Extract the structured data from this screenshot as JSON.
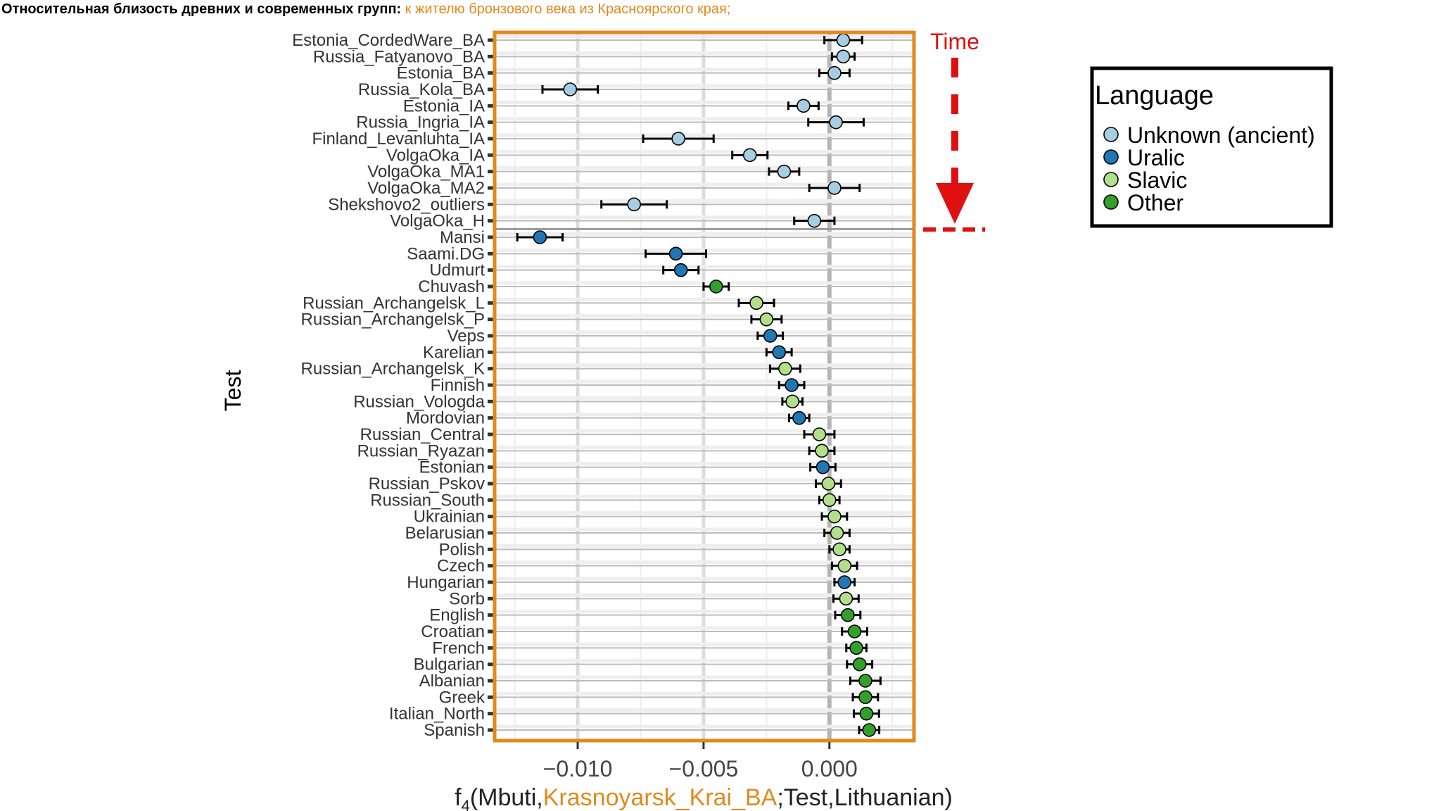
{
  "title": {
    "main": "Относительная близость древних и современных групп:",
    "highlight": "к жителю бронзового века из Красноярского края;"
  },
  "annotation": {
    "time_label": "Time"
  },
  "colors": {
    "frame": "#e08a1e",
    "time_arrow": "#e01010",
    "Unknown (ancient)": "#a6cee3",
    "Uralic": "#1f78b4",
    "Slavic": "#b2df8a",
    "Other": "#33a02c"
  },
  "chart_data": {
    "type": "scatter",
    "title": "",
    "xlabel_parts": [
      "f",
      "4",
      "(Mbuti,",
      "Krasnoyarsk_Krai_BA",
      ";Test,Lithuanian)"
    ],
    "ylabel": "Test",
    "xlim": [
      -0.0133,
      0.00336
    ],
    "xticks": [
      -0.01,
      -0.005,
      0.0
    ],
    "xtick_labels": [
      "−0.010",
      "−0.005",
      "0.000"
    ],
    "grid": true,
    "legend": {
      "title": "Language",
      "placement": "right",
      "entries": [
        "Unknown (ancient)",
        "Uralic",
        "Slavic",
        "Other"
      ]
    },
    "separator_after": "VolgaOka_H",
    "points": [
      {
        "label": "Estonia_CordedWare_BA",
        "value": 0.00055,
        "err": 0.00075,
        "group": "Unknown (ancient)"
      },
      {
        "label": "Russia_Fatyanovo_BA",
        "value": 0.00055,
        "err": 0.00045,
        "group": "Unknown (ancient)"
      },
      {
        "label": "Estonia_BA",
        "value": 0.0002,
        "err": 0.0006,
        "group": "Unknown (ancient)"
      },
      {
        "label": "Russia_Kola_BA",
        "value": -0.0103,
        "err": 0.0011,
        "group": "Unknown (ancient)"
      },
      {
        "label": "Estonia_IA",
        "value": -0.00103,
        "err": 0.0006,
        "group": "Unknown (ancient)"
      },
      {
        "label": "Russia_Ingria_IA",
        "value": 0.00026,
        "err": 0.0011,
        "group": "Unknown (ancient)"
      },
      {
        "label": "Finland_Levanluhta_IA",
        "value": -0.006,
        "err": 0.0014,
        "group": "Unknown (ancient)"
      },
      {
        "label": "VolgaOka_IA",
        "value": -0.00316,
        "err": 0.0007,
        "group": "Unknown (ancient)"
      },
      {
        "label": "VolgaOka_MA1",
        "value": -0.0018,
        "err": 0.0006,
        "group": "Unknown (ancient)"
      },
      {
        "label": "VolgaOka_MA2",
        "value": 0.0002,
        "err": 0.001,
        "group": "Unknown (ancient)"
      },
      {
        "label": "Shekshovo2_outliers",
        "value": -0.00776,
        "err": 0.0013,
        "group": "Unknown (ancient)"
      },
      {
        "label": "VolgaOka_H",
        "value": -0.0006,
        "err": 0.0008,
        "group": "Unknown (ancient)"
      },
      {
        "label": "Mansi",
        "value": -0.0115,
        "err": 0.0009,
        "group": "Uralic"
      },
      {
        "label": "Saami.DG",
        "value": -0.0061,
        "err": 0.0012,
        "group": "Uralic"
      },
      {
        "label": "Udmurt",
        "value": -0.0059,
        "err": 0.0007,
        "group": "Uralic"
      },
      {
        "label": "Chuvash",
        "value": -0.0045,
        "err": 0.0005,
        "group": "Other"
      },
      {
        "label": "Russian_Archangelsk_L",
        "value": -0.0029,
        "err": 0.0007,
        "group": "Slavic"
      },
      {
        "label": "Russian_Archangelsk_P",
        "value": -0.0025,
        "err": 0.0006,
        "group": "Slavic"
      },
      {
        "label": "Veps",
        "value": -0.00235,
        "err": 0.0005,
        "group": "Uralic"
      },
      {
        "label": "Karelian",
        "value": -0.002,
        "err": 0.0005,
        "group": "Uralic"
      },
      {
        "label": "Russian_Archangelsk_K",
        "value": -0.00176,
        "err": 0.0006,
        "group": "Slavic"
      },
      {
        "label": "Finnish",
        "value": -0.0015,
        "err": 0.0005,
        "group": "Uralic"
      },
      {
        "label": "Russian_Vologda",
        "value": -0.00147,
        "err": 0.0004,
        "group": "Slavic"
      },
      {
        "label": "Mordovian",
        "value": -0.0012,
        "err": 0.0004,
        "group": "Uralic"
      },
      {
        "label": "Russian_Central",
        "value": -0.0004,
        "err": 0.0006,
        "group": "Slavic"
      },
      {
        "label": "Russian_Ryazan",
        "value": -0.0003,
        "err": 0.0005,
        "group": "Slavic"
      },
      {
        "label": "Estonian",
        "value": -0.00026,
        "err": 0.0005,
        "group": "Uralic"
      },
      {
        "label": "Russian_Pskov",
        "value": -4e-05,
        "err": 0.0005,
        "group": "Slavic"
      },
      {
        "label": "Russian_South",
        "value": 0.0,
        "err": 0.0004,
        "group": "Slavic"
      },
      {
        "label": "Ukrainian",
        "value": 0.0002,
        "err": 0.0005,
        "group": "Slavic"
      },
      {
        "label": "Belarusian",
        "value": 0.0003,
        "err": 0.0005,
        "group": "Slavic"
      },
      {
        "label": "Polish",
        "value": 0.0004,
        "err": 0.0004,
        "group": "Slavic"
      },
      {
        "label": "Czech",
        "value": 0.0006,
        "err": 0.0005,
        "group": "Slavic"
      },
      {
        "label": "Hungarian",
        "value": 0.0006,
        "err": 0.0004,
        "group": "Uralic"
      },
      {
        "label": "Sorb",
        "value": 0.00066,
        "err": 0.0005,
        "group": "Slavic"
      },
      {
        "label": "English",
        "value": 0.00073,
        "err": 0.0005,
        "group": "Other"
      },
      {
        "label": "Croatian",
        "value": 0.001,
        "err": 0.0005,
        "group": "Other"
      },
      {
        "label": "French",
        "value": 0.00107,
        "err": 0.0004,
        "group": "Other"
      },
      {
        "label": "Bulgarian",
        "value": 0.0012,
        "err": 0.0005,
        "group": "Other"
      },
      {
        "label": "Albanian",
        "value": 0.00143,
        "err": 0.0006,
        "group": "Other"
      },
      {
        "label": "Greek",
        "value": 0.00143,
        "err": 0.0005,
        "group": "Other"
      },
      {
        "label": "Italian_North",
        "value": 0.00147,
        "err": 0.0005,
        "group": "Other"
      },
      {
        "label": "Spanish",
        "value": 0.00158,
        "err": 0.0004,
        "group": "Other"
      }
    ]
  }
}
